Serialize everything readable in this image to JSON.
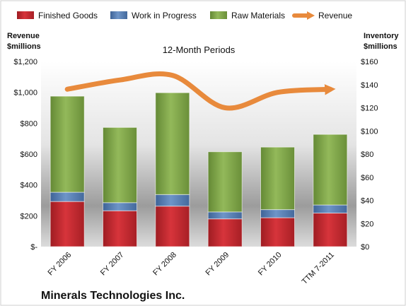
{
  "chart_data": {
    "type": "bar",
    "subtitle": "12-Month Periods",
    "footer_title": "Minerals Technologies Inc.",
    "left_axis_label": [
      "Revenue",
      "$millions"
    ],
    "right_axis_label": [
      "Inventory",
      "$millions"
    ],
    "categories": [
      "FY 2006",
      "FY 2007",
      "FY 2008",
      "FY 2009",
      "FY 2010",
      "TTM 7-2011"
    ],
    "stacked_axis": "right",
    "series": [
      {
        "name": "Finished Goods",
        "type": "bar",
        "axis": "right",
        "color": "#c0262d",
        "values": [
          39,
          31,
          35,
          24,
          25,
          29
        ]
      },
      {
        "name": "Work in Progress",
        "type": "bar",
        "axis": "right",
        "color": "#4f79b3",
        "values": [
          8,
          7,
          10,
          6,
          7,
          7
        ]
      },
      {
        "name": "Raw Materials",
        "type": "bar",
        "axis": "right",
        "color": "#7aa241",
        "values": [
          83,
          65,
          88,
          52,
          54,
          61
        ]
      },
      {
        "name": "Revenue",
        "type": "line",
        "axis": "left",
        "color": "#e88a3c",
        "values": [
          1020,
          1080,
          1110,
          900,
          1000,
          1020
        ]
      }
    ],
    "left_axis": {
      "min": 0,
      "max": 1200,
      "ticks": [
        "$-",
        "$200",
        "$400",
        "$600",
        "$800",
        "$1,000",
        "$1,200"
      ]
    },
    "right_axis": {
      "min": 0,
      "max": 160,
      "ticks": [
        "$0",
        "$20",
        "$40",
        "$60",
        "$80",
        "$100",
        "$120",
        "$140",
        "$160"
      ]
    },
    "legend_position": "top"
  }
}
